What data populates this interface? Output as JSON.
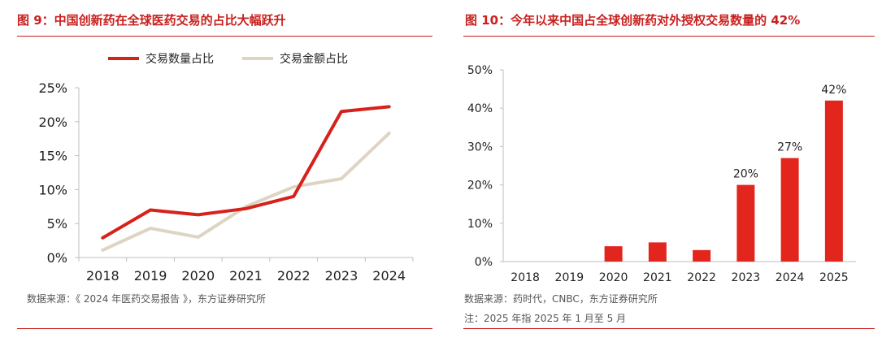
{
  "left": {
    "title": "图 9：中国创新药在全球医药交易的占比大幅跃升",
    "source": "数据来源：《 2024 年医药交易报告 》，东方证券研究所"
  },
  "right": {
    "title": "图 10：今年以来中国占全球创新药对外授权交易数量的 42%",
    "source": "数据来源：药时代，CNBC，东方证券研究所",
    "note": "注：2025 年指 2025 年 1 月至 5 月"
  },
  "chart_data": [
    {
      "type": "line",
      "x": [
        "2018",
        "2019",
        "2020",
        "2021",
        "2022",
        "2023",
        "2024"
      ],
      "series": [
        {
          "name": "交易数量占比",
          "color": "#d7211b",
          "values": [
            2.9,
            7.0,
            6.3,
            7.2,
            9.0,
            21.5,
            22.2
          ]
        },
        {
          "name": "交易金额占比",
          "color": "#ddd4c2",
          "values": [
            1.1,
            4.3,
            3.0,
            7.5,
            10.4,
            11.6,
            18.3
          ]
        }
      ],
      "ylim": [
        0,
        25
      ],
      "yticks": [
        "0%",
        "5%",
        "10%",
        "15%",
        "20%",
        "25%"
      ],
      "legend": "top",
      "grid": false
    },
    {
      "type": "bar",
      "categories": [
        "2018",
        "2019",
        "2020",
        "2021",
        "2022",
        "2023",
        "2024",
        "2025"
      ],
      "values": [
        0,
        0,
        4,
        5,
        3,
        20,
        27,
        42
      ],
      "data_labels": [
        "",
        "",
        "",
        "",
        "",
        "20%",
        "27%",
        "42%"
      ],
      "color": "#e2261e",
      "ylim": [
        0,
        50
      ],
      "yticks": [
        "0%",
        "10%",
        "20%",
        "30%",
        "40%",
        "50%"
      ],
      "grid": false
    }
  ]
}
